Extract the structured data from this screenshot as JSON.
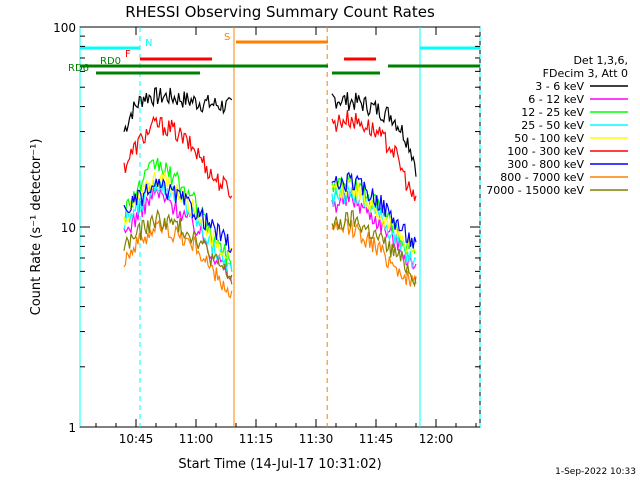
{
  "chart_data": {
    "type": "line",
    "title": "RHESSI Observing Summary Count Rates",
    "xlabel": "Start Time (14-Jul-17 10:31:02)",
    "ylabel": "Count Rate (s⁻¹ detector⁻¹)",
    "yscale": "log",
    "ylim": [
      1,
      100
    ],
    "xlim_minutes": [
      0,
      100
    ],
    "x_ticks": [
      {
        "t": 14,
        "label": "10:45"
      },
      {
        "t": 29,
        "label": "11:00"
      },
      {
        "t": 44,
        "label": "11:15"
      },
      {
        "t": 59,
        "label": "11:30"
      },
      {
        "t": 74,
        "label": "11:45"
      },
      {
        "t": 89,
        "label": "12:00"
      }
    ],
    "y_ticks": [
      {
        "v": 1,
        "label": "1"
      },
      {
        "v": 10,
        "label": "10"
      },
      {
        "v": 100,
        "label": "100"
      }
    ],
    "legend": {
      "placement": "right",
      "header": [
        "Det 1,3,6,",
        "FDecim 3, Att 0"
      ],
      "entries": [
        {
          "label": "3 - 6 keV",
          "color": "#000000"
        },
        {
          "label": "6 - 12 keV",
          "color": "#ff00ff"
        },
        {
          "label": "12 - 25 keV",
          "color": "#00ff00"
        },
        {
          "label": "25 - 50 keV",
          "color": "#00ffff"
        },
        {
          "label": "50 - 100 keV",
          "color": "#ffff00"
        },
        {
          "label": "100 - 300 keV",
          "color": "#ff0000"
        },
        {
          "label": "300 - 800 keV",
          "color": "#0000ff"
        },
        {
          "label": "800 - 7000 keV",
          "color": "#ff8000"
        },
        {
          "label": "7000 - 15000 keV",
          "color": "#808000"
        }
      ]
    },
    "segments": [
      [
        11,
        38
      ],
      [
        63,
        84
      ]
    ],
    "series": [
      {
        "color": "#000000",
        "values": [
          [
            11,
            30
          ],
          [
            13,
            38
          ],
          [
            16,
            45
          ],
          [
            22,
            45
          ],
          [
            30,
            42
          ],
          [
            38,
            40
          ],
          [
            63,
            44
          ],
          [
            70,
            42
          ],
          [
            78,
            36
          ],
          [
            82,
            27
          ],
          [
            84,
            20
          ]
        ]
      },
      {
        "color": "#ff0000",
        "values": [
          [
            11,
            20
          ],
          [
            15,
            27
          ],
          [
            19,
            33
          ],
          [
            23,
            31
          ],
          [
            29,
            24
          ],
          [
            33,
            18
          ],
          [
            38,
            15
          ],
          [
            63,
            33
          ],
          [
            67,
            35
          ],
          [
            72,
            32
          ],
          [
            78,
            25
          ],
          [
            82,
            16
          ],
          [
            84,
            13
          ]
        ]
      },
      {
        "color": "#ff00ff",
        "values": [
          [
            11,
            9
          ],
          [
            15,
            12
          ],
          [
            19,
            15
          ],
          [
            23,
            13
          ],
          [
            29,
            10
          ],
          [
            33,
            7.5
          ],
          [
            38,
            5.5
          ],
          [
            63,
            13
          ],
          [
            68,
            14
          ],
          [
            74,
            11
          ],
          [
            80,
            8
          ],
          [
            84,
            6
          ]
        ]
      },
      {
        "color": "#00ff00",
        "values": [
          [
            11,
            12
          ],
          [
            15,
            16
          ],
          [
            19,
            21
          ],
          [
            23,
            18
          ],
          [
            29,
            13
          ],
          [
            33,
            9
          ],
          [
            38,
            6.5
          ],
          [
            63,
            16
          ],
          [
            68,
            17
          ],
          [
            74,
            13
          ],
          [
            80,
            9
          ],
          [
            84,
            7
          ]
        ]
      },
      {
        "color": "#00ffff",
        "values": [
          [
            11,
            10
          ],
          [
            15,
            13
          ],
          [
            19,
            17
          ],
          [
            23,
            15
          ],
          [
            29,
            11
          ],
          [
            33,
            8
          ],
          [
            38,
            6
          ],
          [
            63,
            14
          ],
          [
            68,
            15
          ],
          [
            74,
            12
          ],
          [
            80,
            8
          ],
          [
            84,
            6.5
          ]
        ]
      },
      {
        "color": "#ffff00",
        "values": [
          [
            11,
            11
          ],
          [
            15,
            14
          ],
          [
            19,
            18
          ],
          [
            23,
            16
          ],
          [
            29,
            12
          ],
          [
            33,
            9
          ],
          [
            38,
            7
          ],
          [
            63,
            15
          ],
          [
            68,
            16
          ],
          [
            74,
            12
          ],
          [
            80,
            9
          ],
          [
            84,
            7
          ]
        ]
      },
      {
        "color": "#0000ff",
        "values": [
          [
            11,
            12
          ],
          [
            15,
            14
          ],
          [
            19,
            16
          ],
          [
            23,
            15
          ],
          [
            29,
            12
          ],
          [
            33,
            10
          ],
          [
            38,
            8
          ],
          [
            63,
            16
          ],
          [
            68,
            17
          ],
          [
            74,
            14
          ],
          [
            80,
            10
          ],
          [
            84,
            8
          ]
        ]
      },
      {
        "color": "#ff8000",
        "values": [
          [
            11,
            7
          ],
          [
            15,
            8.5
          ],
          [
            19,
            10
          ],
          [
            23,
            9.5
          ],
          [
            29,
            8
          ],
          [
            33,
            6
          ],
          [
            38,
            4.5
          ],
          [
            63,
            9.5
          ],
          [
            68,
            10
          ],
          [
            74,
            8
          ],
          [
            80,
            6
          ],
          [
            84,
            5
          ]
        ]
      },
      {
        "color": "#808000",
        "values": [
          [
            11,
            8
          ],
          [
            15,
            9.5
          ],
          [
            19,
            11
          ],
          [
            23,
            10.5
          ],
          [
            29,
            9
          ],
          [
            33,
            7
          ],
          [
            38,
            5.5
          ],
          [
            63,
            10
          ],
          [
            68,
            11
          ],
          [
            74,
            9
          ],
          [
            80,
            7
          ],
          [
            84,
            5.5
          ]
        ]
      }
    ],
    "flag_bars": [
      {
        "label": "N",
        "color": "#00ffff",
        "ranges": [
          [
            0,
            15
          ],
          [
            85,
            100
          ]
        ],
        "level": 0
      },
      {
        "label": "S",
        "color": "#ff8000",
        "ranges": [
          [
            39,
            62
          ]
        ],
        "level": 1
      },
      {
        "label": "F",
        "color": "#ff0000",
        "ranges": [
          [
            15,
            33
          ],
          [
            66,
            74
          ]
        ],
        "level": 2
      },
      {
        "label": "RD0",
        "color": "#008000",
        "ranges": [
          [
            0,
            31
          ],
          [
            31,
            62
          ],
          [
            77,
            100
          ]
        ],
        "level": 3
      },
      {
        "label": "RD6",
        "color": "#008000",
        "ranges": [
          [
            4,
            30
          ],
          [
            63,
            75
          ]
        ],
        "level": 4
      }
    ],
    "vlines": [
      {
        "t": 0,
        "color": "#00ffff",
        "dash": false
      },
      {
        "t": 15,
        "color": "#00ffff",
        "dash": true
      },
      {
        "t": 38.5,
        "color": "#ff8000",
        "dash": false
      },
      {
        "t": 61.8,
        "color": "#ff8000",
        "dash": true
      },
      {
        "t": 85,
        "color": "#00ffff",
        "dash": false
      },
      {
        "t": 100,
        "color": "#00ffff",
        "dash": true
      }
    ],
    "grid": false
  },
  "footer": {
    "date": "1-Sep-2022 10:33"
  }
}
